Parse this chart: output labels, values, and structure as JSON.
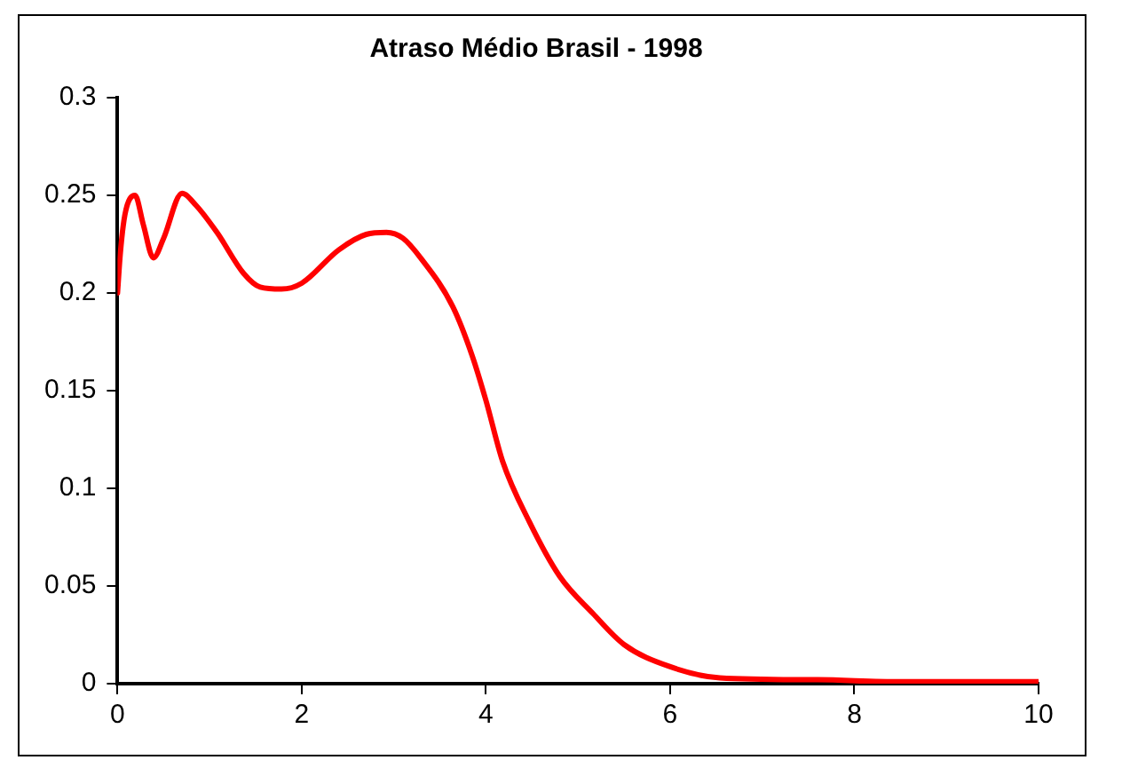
{
  "chart_data": {
    "type": "line",
    "title": "Atraso Médio Brasil - 1998",
    "x": [
      0,
      0.03,
      0.08,
      0.19,
      0.28,
      0.39,
      0.5,
      0.7,
      0.85,
      1.08,
      1.37,
      1.55,
      1.78,
      2.0,
      2.4,
      2.7,
      2.92,
      3.1,
      3.29,
      3.64,
      3.85,
      4.0,
      4.18,
      4.47,
      4.8,
      5.16,
      5.5,
      5.98,
      6.54,
      7.6,
      8.5,
      10
    ],
    "series": [
      {
        "color": "#ff0000",
        "values": [
          0.2,
          0.22,
          0.24,
          0.25,
          0.235,
          0.218,
          0.228,
          0.251,
          0.245,
          0.231,
          0.21,
          0.203,
          0.202,
          0.205,
          0.222,
          0.23,
          0.231,
          0.228,
          0.218,
          0.193,
          0.168,
          0.145,
          0.114,
          0.083,
          0.055,
          0.036,
          0.02,
          0.009,
          0.003,
          0.002,
          0.001,
          0.001
        ]
      }
    ],
    "xlim": [
      0,
      10
    ],
    "xticks": [
      0,
      2,
      4,
      6,
      8,
      10
    ],
    "ylim": [
      0,
      0.3
    ],
    "yticks": [
      0,
      0.05,
      0.1,
      0.15,
      0.2,
      0.25,
      0.3
    ],
    "grid": false,
    "legend": false,
    "marker": "none",
    "line_style": "solid"
  }
}
